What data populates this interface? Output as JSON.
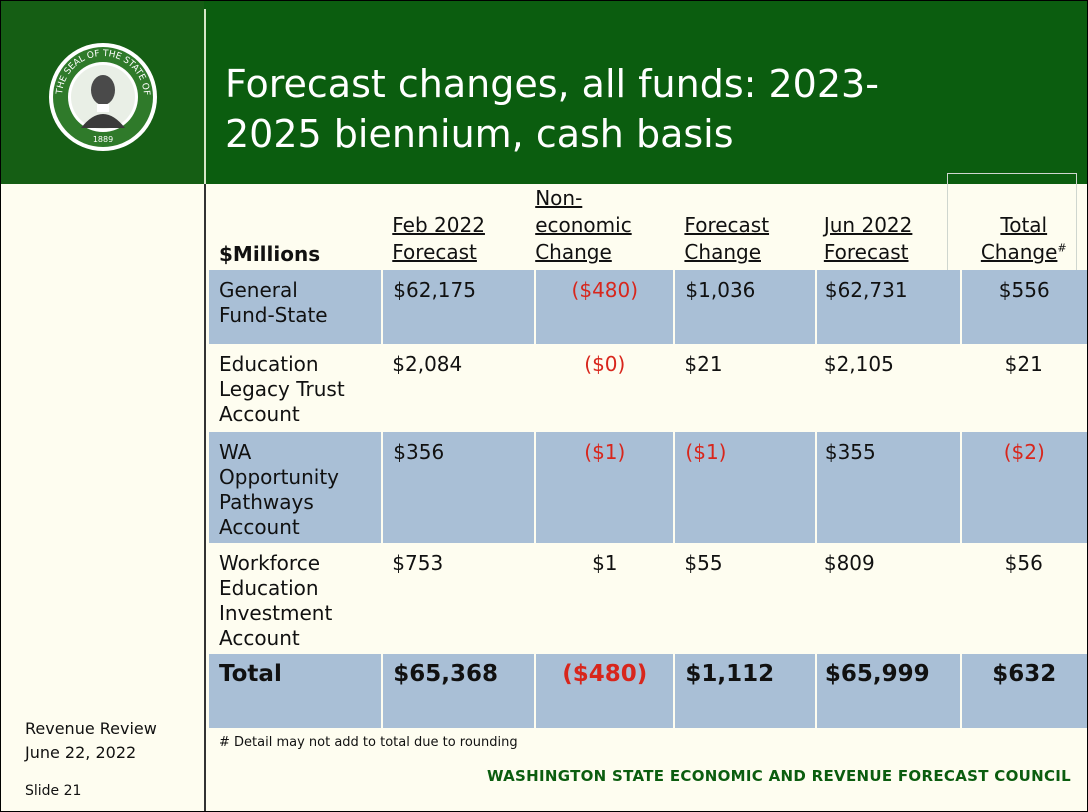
{
  "title": "Forecast changes, all funds: 2023-2025 biennium, cash basis",
  "title_line1": "Forecast changes, all funds: 2023-",
  "title_line2": "2025 biennium, cash basis",
  "seal": {
    "alt": "Seal of the State of Washington",
    "year": "1889",
    "text": "THE SEAL OF THE STATE OF WASHINGTON"
  },
  "sidebar": {
    "line1": "Revenue Review",
    "line2": "June 22, 2022",
    "slide": "Slide 21"
  },
  "table": {
    "units_label": "$Millions",
    "headers": [
      {
        "line1": "Feb 2022",
        "line2": "Forecast"
      },
      {
        "line1": "Non-",
        "line2": "economic",
        "line3": "Change"
      },
      {
        "line1": "Forecast",
        "line2": "Change"
      },
      {
        "line1": "Jun 2022",
        "line2": "Forecast"
      },
      {
        "line1": "Total",
        "line2": "Change",
        "sup": "#"
      }
    ],
    "rows": [
      {
        "name": [
          "General",
          "Fund-State"
        ],
        "feb": "$62,175",
        "nonecon": "($480)",
        "fc": "$1,036",
        "jun": "$62,731",
        "total": "$556"
      },
      {
        "name": [
          "Education",
          "Legacy Trust",
          "Account"
        ],
        "feb": "$2,084",
        "nonecon": "($0)",
        "fc": "$21",
        "jun": "$2,105",
        "total": "$21"
      },
      {
        "name": [
          "WA",
          "Opportunity",
          "Pathways",
          "Account"
        ],
        "feb": "$356",
        "nonecon": "($1)",
        "fc": "($1)",
        "jun": "$355",
        "total": "($2)"
      },
      {
        "name": [
          "Workforce",
          "Education",
          "Investment",
          "Account"
        ],
        "feb": "$753",
        "nonecon": "$1",
        "fc": "$55",
        "jun": "$809",
        "total": "$56"
      }
    ],
    "total": {
      "name": "Total",
      "feb": "$65,368",
      "nonecon": "($480)",
      "fc": "$1,112",
      "jun": "$65,999",
      "total": "$632"
    }
  },
  "footnote": "# Detail may not add to total due to rounding",
  "council": "WASHINGTON STATE ECONOMIC AND REVENUE FORECAST COUNCIL",
  "colors": {
    "header_green": "#0b5d0f",
    "row_shade": "#a9bfd6",
    "negative": "#d8261c",
    "background": "#fefdf0"
  }
}
